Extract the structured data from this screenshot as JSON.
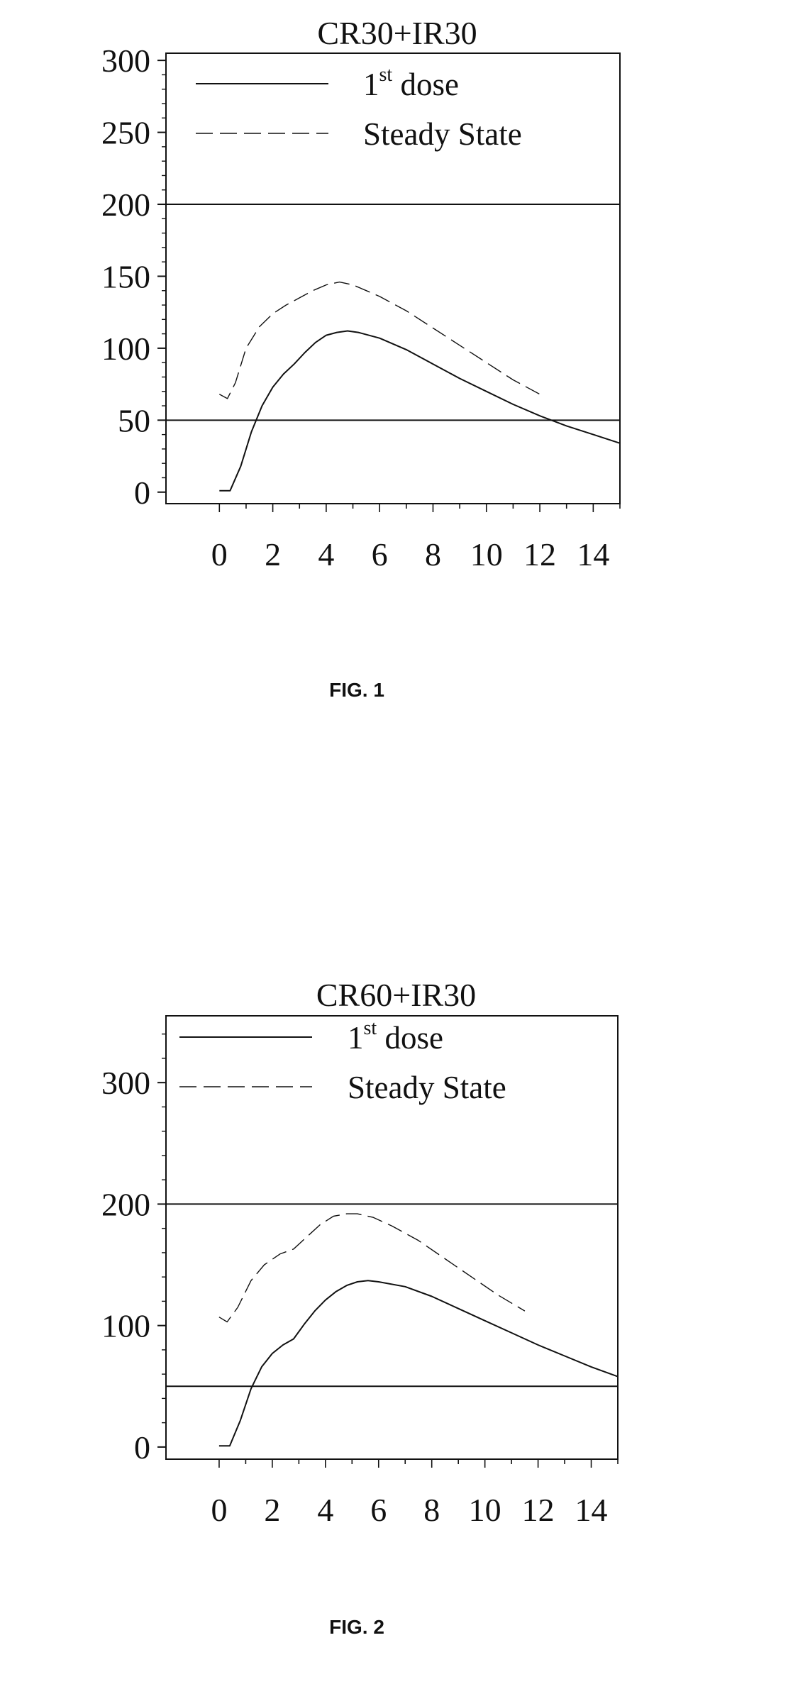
{
  "figures": [
    {
      "caption": "FIG. 1"
    },
    {
      "caption": "FIG. 2"
    }
  ],
  "chart_data": [
    {
      "type": "line",
      "title": "CR30+IR30",
      "xlabel": "",
      "ylabel": "",
      "xlim": [
        -2,
        15
      ],
      "ylim": [
        -8,
        305
      ],
      "x_ticks": [
        0,
        2,
        4,
        6,
        8,
        10,
        12,
        14
      ],
      "y_ticks": [
        0,
        50,
        100,
        150,
        200,
        250,
        300
      ],
      "reference_lines": [
        200,
        50
      ],
      "legend_position": "top-left",
      "series": [
        {
          "name": "1st dose",
          "legend_base": "1",
          "legend_sup": "st",
          "legend_rest": " dose",
          "style": "solid",
          "x": [
            0,
            0.4,
            0.8,
            1.2,
            1.6,
            2.0,
            2.4,
            2.8,
            3.2,
            3.6,
            4.0,
            4.4,
            4.8,
            5.2,
            6.0,
            7.0,
            8.0,
            9.0,
            10.0,
            11.0,
            12.0,
            13.0,
            14.0,
            15.0
          ],
          "y": [
            1,
            1,
            18,
            42,
            60,
            73,
            82,
            89,
            97,
            104,
            109,
            111,
            112,
            111,
            107,
            99,
            89,
            79,
            70,
            61,
            53,
            46,
            40,
            34
          ]
        },
        {
          "name": "Steady State",
          "style": "dashed",
          "x": [
            0,
            0.3,
            0.6,
            1.0,
            1.5,
            2.0,
            2.5,
            3.0,
            3.5,
            4.0,
            4.5,
            5.0,
            5.5,
            6.0,
            7.0,
            8.0,
            9.0,
            10.0,
            11.0,
            12.0
          ],
          "y": [
            68,
            65,
            76,
            100,
            115,
            124,
            130,
            135,
            140,
            144,
            146,
            144,
            140,
            136,
            126,
            114,
            102,
            90,
            78,
            68
          ]
        }
      ]
    },
    {
      "type": "line",
      "title": "CR60+IR30",
      "xlabel": "",
      "ylabel": "",
      "xlim": [
        -2,
        15
      ],
      "ylim": [
        -10,
        355
      ],
      "x_ticks": [
        0,
        2,
        4,
        6,
        8,
        10,
        12,
        14
      ],
      "y_ticks": [
        0,
        100,
        200,
        300
      ],
      "reference_lines": [
        200,
        50
      ],
      "legend_position": "top-left",
      "series": [
        {
          "name": "1st dose",
          "legend_base": "1",
          "legend_sup": "st",
          "legend_rest": " dose",
          "style": "solid",
          "x": [
            0,
            0.4,
            0.8,
            1.2,
            1.6,
            2.0,
            2.4,
            2.8,
            3.2,
            3.6,
            4.0,
            4.4,
            4.8,
            5.2,
            5.6,
            6.0,
            7.0,
            8.0,
            9.0,
            10.0,
            11.0,
            12.0,
            13.0,
            14.0,
            15.0
          ],
          "y": [
            1,
            1,
            22,
            48,
            66,
            77,
            84,
            89,
            101,
            112,
            121,
            128,
            133,
            136,
            137,
            136,
            132,
            124,
            114,
            104,
            94,
            84,
            75,
            66,
            58
          ]
        },
        {
          "name": "Steady State",
          "style": "dashed",
          "x": [
            0,
            0.3,
            0.7,
            1.2,
            1.7,
            2.3,
            2.8,
            3.3,
            3.8,
            4.3,
            4.8,
            5.2,
            5.8,
            6.5,
            7.5,
            8.5,
            9.5,
            10.5,
            11.5
          ],
          "y": [
            107,
            103,
            115,
            137,
            150,
            159,
            163,
            173,
            183,
            190,
            192,
            192,
            189,
            182,
            170,
            155,
            140,
            125,
            112
          ]
        }
      ]
    }
  ]
}
